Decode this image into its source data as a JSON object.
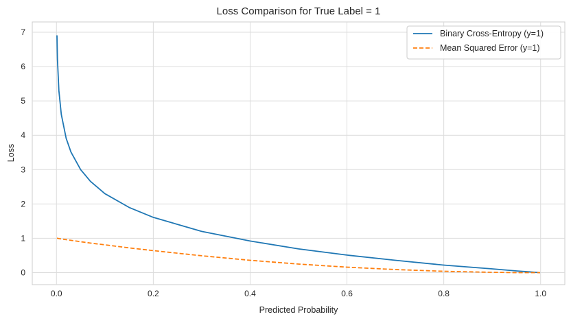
{
  "chart_data": {
    "type": "line",
    "title": "Loss Comparison for True Label = 1",
    "xlabel": "Predicted Probability",
    "ylabel": "Loss",
    "xlim": [
      -0.05,
      1.05
    ],
    "ylim": [
      -0.35,
      7.3
    ],
    "xticks": [
      0.0,
      0.2,
      0.4,
      0.6,
      0.8,
      1.0
    ],
    "xtick_labels": [
      "0.0",
      "0.2",
      "0.4",
      "0.6",
      "0.8",
      "1.0"
    ],
    "yticks": [
      0,
      1,
      2,
      3,
      4,
      5,
      6,
      7
    ],
    "ytick_labels": [
      "0",
      "1",
      "2",
      "3",
      "4",
      "5",
      "6",
      "7"
    ],
    "grid": true,
    "legend_position": "top-right",
    "x": [
      0.001,
      0.002,
      0.005,
      0.01,
      0.02,
      0.03,
      0.05,
      0.07,
      0.1,
      0.15,
      0.2,
      0.3,
      0.4,
      0.5,
      0.6,
      0.7,
      0.8,
      0.9,
      0.95,
      0.999
    ],
    "series": [
      {
        "name": "Binary Cross-Entropy (y=1)",
        "style": "solid",
        "color": "#1f77b4",
        "values": [
          6.91,
          6.21,
          5.3,
          4.61,
          3.91,
          3.51,
          3.0,
          2.66,
          2.3,
          1.9,
          1.61,
          1.2,
          0.92,
          0.69,
          0.51,
          0.36,
          0.22,
          0.11,
          0.05,
          0.0
        ]
      },
      {
        "name": "Mean Squared Error (y=1)",
        "style": "dashed",
        "color": "#ff7f0e",
        "values": [
          1.0,
          1.0,
          0.99,
          0.98,
          0.96,
          0.94,
          0.9,
          0.86,
          0.81,
          0.72,
          0.64,
          0.49,
          0.36,
          0.25,
          0.16,
          0.09,
          0.04,
          0.01,
          0.0,
          0.0
        ]
      }
    ]
  }
}
